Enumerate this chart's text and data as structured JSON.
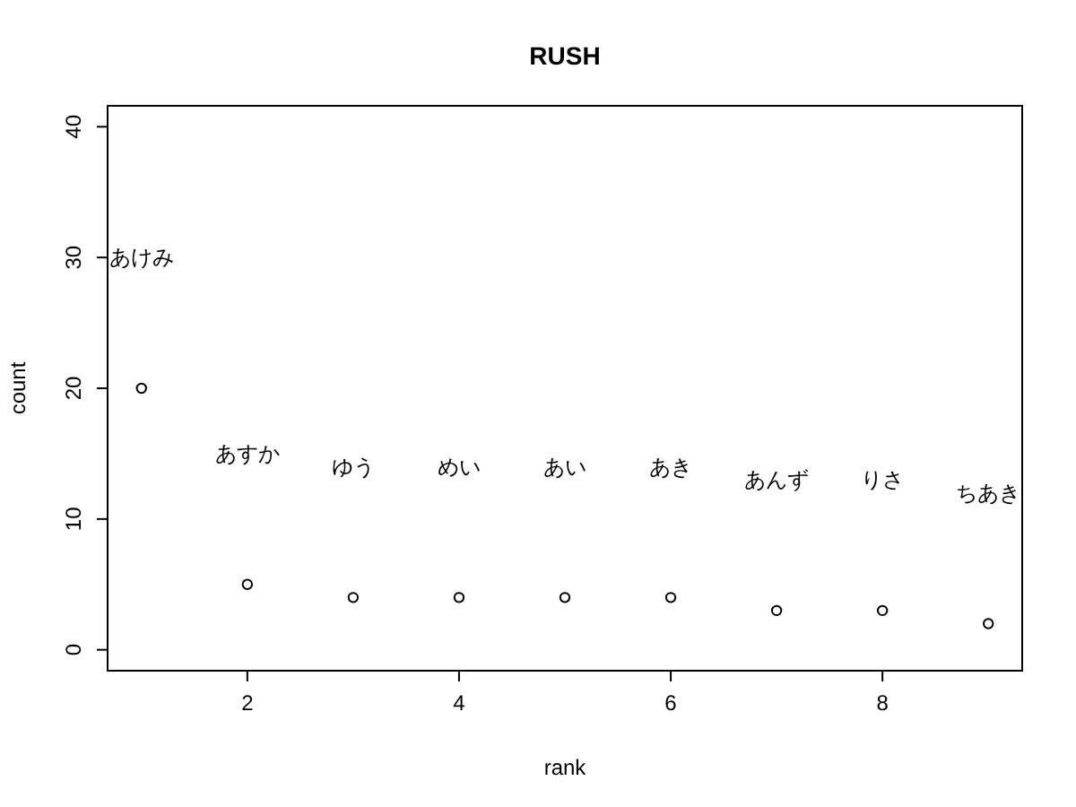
{
  "chart_data": {
    "type": "scatter",
    "title": "RUSH",
    "xlabel": "rank",
    "ylabel": "count",
    "x": [
      1,
      2,
      3,
      4,
      5,
      6,
      7,
      8,
      9
    ],
    "values": [
      20,
      5,
      4,
      4,
      4,
      4,
      3,
      3,
      2
    ],
    "color": "#000000",
    "marker": "circle",
    "grid": false,
    "xlim": [
      0.68,
      9.32
    ],
    "xticks": [
      2,
      4,
      6,
      8
    ],
    "ylim": [
      -1.6,
      41.6
    ],
    "yticks": [
      0,
      10,
      20,
      30,
      40
    ],
    "annotations": [
      "あけみ",
      "あすか",
      "ゆう",
      "めい",
      "あい",
      "あき",
      "あんず",
      "りさ",
      "ちあき"
    ]
  }
}
